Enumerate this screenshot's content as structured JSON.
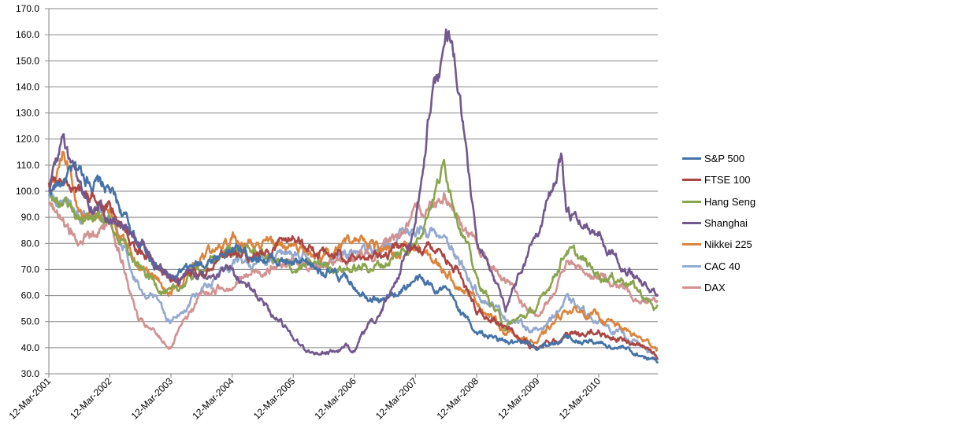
{
  "chart_data": {
    "type": "line",
    "title": "",
    "xlabel": "",
    "ylabel": "",
    "ylim": [
      30,
      170
    ],
    "yticks": [
      "30.0",
      "40.0",
      "50.0",
      "60.0",
      "70.0",
      "80.0",
      "90.0",
      "100.0",
      "110.0",
      "120.0",
      "130.0",
      "140.0",
      "150.0",
      "160.0",
      "170.0"
    ],
    "x_range": [
      "2001-03-12",
      "2011-02-28"
    ],
    "xticks": [
      {
        "date": "2001-03-12",
        "label": "12-Mar-2001"
      },
      {
        "date": "2002-03-12",
        "label": "12-Mar-2002"
      },
      {
        "date": "2003-03-12",
        "label": "12-Mar-2003"
      },
      {
        "date": "2004-03-12",
        "label": "12-Mar-2004"
      },
      {
        "date": "2005-03-12",
        "label": "12-Mar-2005"
      },
      {
        "date": "2006-03-12",
        "label": "12-Mar-2006"
      },
      {
        "date": "2007-03-12",
        "label": "12-Mar-2007"
      },
      {
        "date": "2008-03-12",
        "label": "12-Mar-2008"
      },
      {
        "date": "2009-03-12",
        "label": "12-Mar-2009"
      },
      {
        "date": "2010-03-12",
        "label": "12-Mar-2010"
      }
    ],
    "grid": true,
    "legend_position": "right",
    "series": [
      {
        "name": "S&P 500",
        "color": "#4572A7",
        "x": [
          "2001-03-12",
          "2001-09-01",
          "2002-03-12",
          "2002-09-01",
          "2003-03-12",
          "2003-09-01",
          "2004-03-12",
          "2004-09-01",
          "2005-03-12",
          "2005-09-01",
          "2006-03-12",
          "2006-09-01",
          "2007-03-12",
          "2007-09-01",
          "2008-03-12",
          "2008-09-01",
          "2009-03-12",
          "2009-09-01",
          "2010-03-12",
          "2010-09-01",
          "2011-02-28"
        ],
        "y": [
          100,
          108,
          100,
          80,
          66,
          72,
          78,
          75,
          72,
          70,
          64,
          58,
          66,
          62,
          46,
          42,
          40,
          44,
          42,
          39,
          35
        ]
      },
      {
        "name": "FTSE 100",
        "color": "#AA4643",
        "x": [
          "2001-03-12",
          "2001-09-01",
          "2002-03-12",
          "2002-09-01",
          "2003-03-12",
          "2003-09-01",
          "2004-03-12",
          "2004-09-01",
          "2005-03-12",
          "2005-09-01",
          "2006-03-12",
          "2006-09-01",
          "2007-03-12",
          "2007-09-01",
          "2008-03-12",
          "2008-09-01",
          "2009-03-12",
          "2009-09-01",
          "2010-03-12",
          "2010-09-01",
          "2011-02-28"
        ],
        "y": [
          105,
          100,
          95,
          80,
          66,
          70,
          75,
          75,
          82,
          76,
          74,
          76,
          80,
          78,
          56,
          48,
          40,
          45,
          46,
          42,
          37
        ]
      },
      {
        "name": "Hang Seng",
        "color": "#89A54E",
        "x": [
          "2001-03-12",
          "2001-09-01",
          "2002-03-12",
          "2002-09-01",
          "2003-03-12",
          "2003-09-01",
          "2004-03-12",
          "2004-09-01",
          "2005-03-12",
          "2005-09-01",
          "2006-03-12",
          "2006-09-01",
          "2007-03-12",
          "2007-09-01",
          "2008-03-12",
          "2008-09-01",
          "2009-03-12",
          "2009-09-01",
          "2010-03-12",
          "2010-09-01",
          "2011-02-28"
        ],
        "y": [
          100,
          90,
          88,
          70,
          60,
          70,
          78,
          76,
          70,
          72,
          70,
          72,
          80,
          110,
          66,
          48,
          55,
          78,
          68,
          66,
          54
        ]
      },
      {
        "name": "Shanghai",
        "color": "#71588F",
        "x": [
          "2001-03-12",
          "2001-06-01",
          "2001-09-01",
          "2002-03-12",
          "2002-09-01",
          "2003-03-12",
          "2003-09-01",
          "2004-03-12",
          "2004-09-01",
          "2005-03-12",
          "2005-06-01",
          "2005-09-01",
          "2006-03-12",
          "2006-09-01",
          "2007-03-12",
          "2007-06-01",
          "2007-10-15",
          "2008-03-12",
          "2008-09-01",
          "2009-03-12",
          "2009-08-01",
          "2009-09-01",
          "2010-03-12",
          "2010-09-01",
          "2011-02-28"
        ],
        "y": [
          100,
          120,
          100,
          92,
          80,
          66,
          68,
          70,
          58,
          45,
          38,
          38,
          40,
          55,
          85,
          130,
          163,
          80,
          56,
          85,
          112,
          90,
          85,
          70,
          60
        ]
      },
      {
        "name": "Nikkei 225",
        "color": "#DB843D",
        "x": [
          "2001-03-12",
          "2001-06-01",
          "2001-09-01",
          "2002-03-12",
          "2002-09-01",
          "2003-03-12",
          "2003-09-01",
          "2004-03-12",
          "2004-09-01",
          "2005-03-12",
          "2005-09-01",
          "2006-03-12",
          "2006-09-01",
          "2007-03-12",
          "2007-09-01",
          "2008-03-12",
          "2008-09-01",
          "2009-03-12",
          "2009-09-01",
          "2010-03-12",
          "2010-09-01",
          "2011-02-28"
        ],
        "y": [
          100,
          115,
          92,
          90,
          72,
          62,
          72,
          82,
          80,
          80,
          75,
          82,
          78,
          78,
          70,
          58,
          46,
          42,
          55,
          52,
          46,
          40
        ]
      },
      {
        "name": "CAC 40",
        "color": "#93A9CF",
        "x": [
          "2001-03-12",
          "2001-09-01",
          "2002-03-12",
          "2002-09-01",
          "2003-03-12",
          "2003-09-01",
          "2004-03-12",
          "2004-09-01",
          "2005-03-12",
          "2005-09-01",
          "2006-03-12",
          "2006-09-01",
          "2007-03-12",
          "2007-09-01",
          "2008-03-12",
          "2008-09-01",
          "2009-03-12",
          "2009-09-01",
          "2010-03-12",
          "2010-09-01",
          "2011-02-28"
        ],
        "y": [
          100,
          90,
          92,
          65,
          50,
          62,
          72,
          74,
          76,
          74,
          76,
          78,
          86,
          82,
          62,
          52,
          46,
          58,
          50,
          44,
          36
        ]
      },
      {
        "name": "DAX",
        "color": "#D19392",
        "x": [
          "2001-03-12",
          "2001-09-01",
          "2002-03-12",
          "2002-09-01",
          "2003-03-12",
          "2003-09-01",
          "2004-03-12",
          "2004-09-01",
          "2005-03-12",
          "2005-09-01",
          "2006-03-12",
          "2006-09-01",
          "2007-03-12",
          "2007-09-01",
          "2008-03-12",
          "2008-09-01",
          "2009-03-12",
          "2009-09-01",
          "2010-03-12",
          "2010-09-01",
          "2011-02-28"
        ],
        "y": [
          95,
          80,
          90,
          50,
          40,
          60,
          65,
          70,
          72,
          72,
          74,
          78,
          90,
          100,
          78,
          65,
          50,
          72,
          68,
          62,
          57
        ]
      }
    ]
  }
}
